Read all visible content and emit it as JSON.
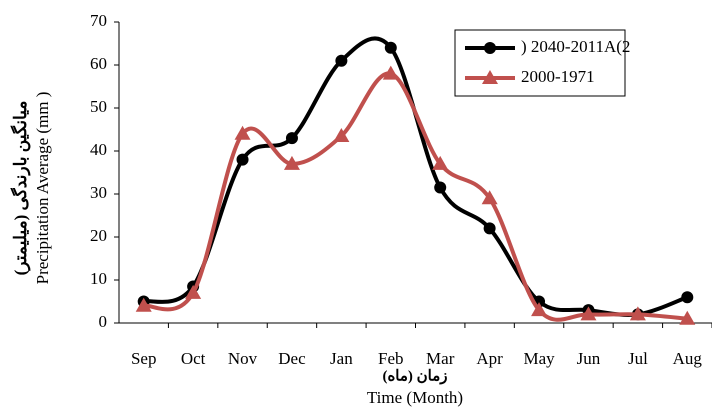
{
  "chart_data": {
    "type": "line",
    "y_label_fa": "میانگین بارندگی (میلیمتر)",
    "y_label": "Precipitation Average (mm )",
    "x_label_fa": "زمان (ماه)",
    "x_label": "Time (Month)",
    "categories": [
      "Sep",
      "Oct",
      "Nov",
      "Dec",
      "Jan",
      "Feb",
      "Mar",
      "Apr",
      "May",
      "Jun",
      "Jul",
      "Aug"
    ],
    "series": [
      {
        "name": ") 2040-2011A(2",
        "color": "#000000",
        "marker": "circle",
        "values": [
          5,
          8.5,
          38,
          43,
          61,
          64,
          31.5,
          22,
          5,
          3,
          2,
          6
        ]
      },
      {
        "name": "2000-1971",
        "color": "#c0504d",
        "marker": "triangle",
        "values": [
          4,
          7,
          44,
          37,
          43.5,
          58,
          37,
          29,
          3,
          2,
          2,
          1
        ]
      }
    ],
    "ylim": [
      0,
      70
    ],
    "yticks": [
      0,
      10,
      20,
      30,
      40,
      50,
      60,
      70
    ],
    "legend": "upper right"
  }
}
